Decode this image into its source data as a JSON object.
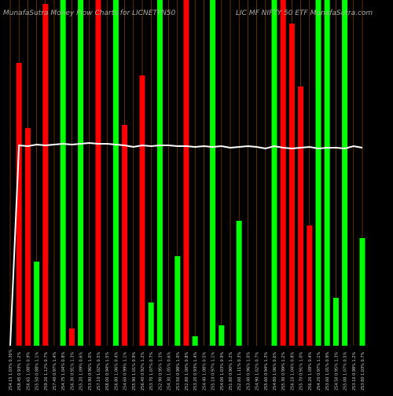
{
  "chart_data": {
    "type": "money-flow",
    "title": "MunafaSutra Money Flow Charts for LICNETFN50",
    "subtitle": "LIC MF NIFTY 50 ETF MunafaSutra.com",
    "categories": [
      "254.15 1.03% 0.30%",
      "258.45 0.93% 1.2%",
      "256.65 1.08% 0.9%",
      "255.50 0.88% 1.1%",
      "259.20 1.12% 0.7%",
      "257.40 0.97% 1.4%",
      "254.75 1.04% 0.8%",
      "256.30 0.91% 1.3%",
      "255.20 1.09% 0.6%",
      "253.90 0.96% 1.0%",
      "257.10 1.02% 0.5%",
      "258.00 0.94% 1.5%",
      "256.80 1.06% 0.4%",
      "254.60 0.99% 1.1%",
      "255.90 1.01% 0.9%",
      "256.40 0.92% 1.2%",
      "253.70 1.07% 0.7%",
      "252.90 0.95% 1.3%",
      "254.30 1.05% 0.6%",
      "253.50 0.98% 1.0%",
      "252.80 1.00% 0.8%",
      "253.20 0.93% 1.4%",
      "254.40 1.08% 0.5%",
      "255.10 0.97% 1.1%",
      "254.00 1.03% 0.9%",
      "251.80 0.90% 1.2%",
      "252.60 1.11% 0.3%",
      "253.40 0.96% 1.0%",
      "254.90 1.02% 0.7%",
      "255.60 0.94% 1.3%",
      "254.80 1.06% 0.6%",
      "255.30 0.99% 1.2%",
      "256.10 1.04% 0.8%",
      "255.70 0.91% 1.0%",
      "256.20 1.09% 0.4%",
      "254.20 0.97% 1.1%",
      "253.60 1.01% 0.9%",
      "254.50 0.95% 1.3%",
      "255.00 1.07% 0.5%",
      "253.10 0.98% 1.2%",
      "253.80 1.03% 0.7%"
    ],
    "values": [
      0,
      360,
      277,
      107,
      435,
      0,
      440,
      22,
      440,
      0,
      440,
      0,
      440,
      281,
      0,
      344,
      55,
      440,
      0,
      114,
      440,
      12,
      0,
      440,
      26,
      0,
      159,
      0,
      0,
      0,
      440,
      440,
      410,
      330,
      153,
      440,
      440,
      61,
      440,
      0,
      137
    ],
    "colors": [
      "#ff0000",
      "#ff0000",
      "#ff0000",
      "#00ff00",
      "#ff0000",
      "#ff0000",
      "#00ff00",
      "#ff0000",
      "#00ff00",
      "#ff0000",
      "#ff0000",
      "#ff0000",
      "#00ff00",
      "#ff0000",
      "#ff0000",
      "#ff0000",
      "#00ff00",
      "#00ff00",
      "#ff0000",
      "#00ff00",
      "#ff0000",
      "#00ff00",
      "#ff0000",
      "#00ff00",
      "#00ff00",
      "#ff0000",
      "#00ff00",
      "#ff0000",
      "#ff0000",
      "#ff0000",
      "#00ff00",
      "#ff0000",
      "#ff0000",
      "#ff0000",
      "#ff0000",
      "#00ff00",
      "#00ff00",
      "#00ff00",
      "#00ff00",
      "#ff0000",
      "#00ff00"
    ],
    "line": {
      "color": "#ffffff",
      "values": [
        0,
        255,
        254,
        256,
        255,
        256,
        257,
        256,
        257,
        258,
        257,
        257,
        256,
        255,
        253,
        255,
        254,
        255,
        255,
        254,
        254,
        253,
        254,
        253,
        254,
        252,
        253,
        254,
        253,
        251,
        254,
        252,
        251,
        252,
        253,
        251,
        252,
        252,
        251,
        254,
        252
      ]
    },
    "ylim": [
      0,
      440
    ]
  }
}
